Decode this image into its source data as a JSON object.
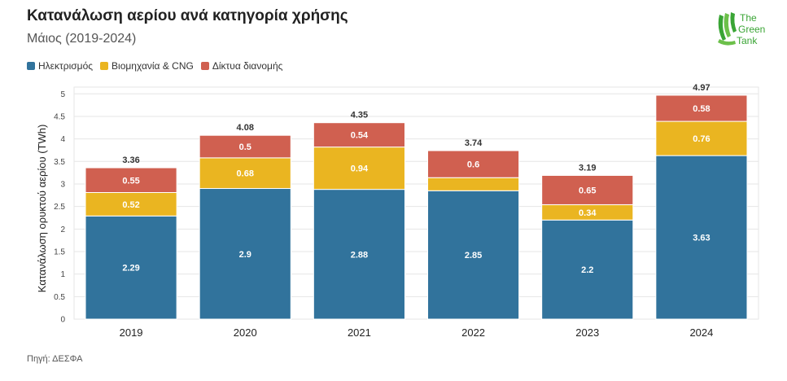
{
  "header": {
    "title": "Κατανάλωση αερίου ανά κατηγορία χρήσης",
    "subtitle": "Μάιος (2019-2024)"
  },
  "logo": {
    "line1": "The",
    "line2": "Green",
    "line3": "Tank",
    "color": "#3aa535"
  },
  "source": "Πηγή: ΔΕΣΦΑ",
  "chart_data": {
    "type": "bar",
    "stacked": true,
    "categories": [
      "2019",
      "2020",
      "2021",
      "2022",
      "2023",
      "2024"
    ],
    "series": [
      {
        "name": "Ηλεκτρισμός",
        "color": "#31739c",
        "values": [
          2.29,
          2.9,
          2.88,
          2.85,
          2.2,
          3.63
        ],
        "labels": [
          "2.29",
          "2.9",
          "2.88",
          "2.85",
          "2.2",
          "3.63"
        ]
      },
      {
        "name": "Βιομηχανία & CNG",
        "color": "#eab521",
        "values": [
          0.52,
          0.68,
          0.94,
          0.29,
          0.34,
          0.76
        ],
        "labels": [
          "0.52",
          "0.68",
          "0.94",
          "",
          "0.34",
          "0.76"
        ]
      },
      {
        "name": "Δίκτυα διανομής",
        "color": "#d06050",
        "values": [
          0.55,
          0.5,
          0.54,
          0.6,
          0.65,
          0.58
        ],
        "labels": [
          "0.55",
          "0.5",
          "0.54",
          "0.6",
          "0.65",
          "0.58"
        ]
      }
    ],
    "totals": [
      "3.36",
      "4.08",
      "4.35",
      "3.74",
      "3.19",
      "4.97"
    ],
    "ylabel": "Κατανάλωση ορυκτού αερίου (TWh)",
    "xlabel": "",
    "ylim": [
      0,
      5
    ],
    "yticks": [
      "0",
      "0.5",
      "1",
      "1.5",
      "2",
      "2.5",
      "3",
      "3.5",
      "4",
      "4.5",
      "5"
    ],
    "legend_position": "top-left",
    "grid": true
  }
}
